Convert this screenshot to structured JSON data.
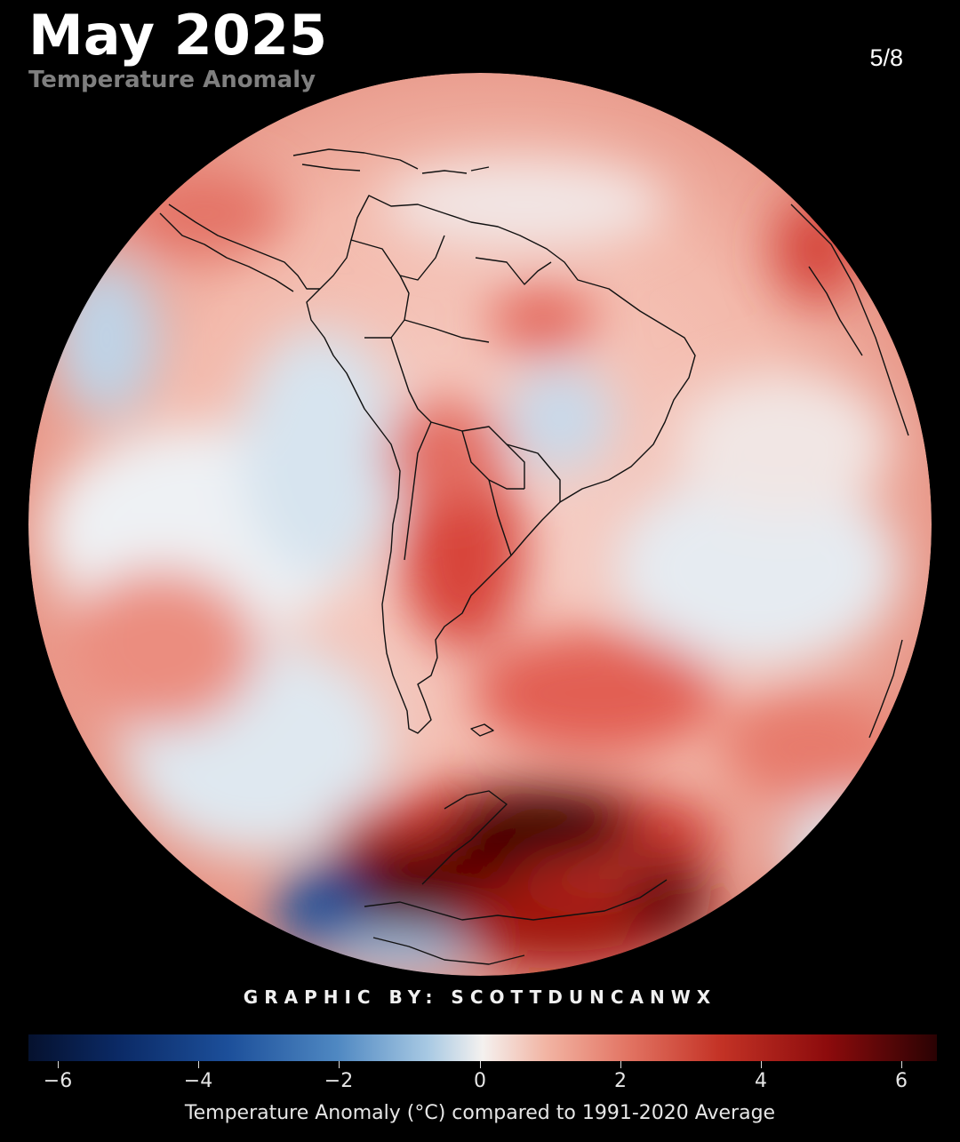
{
  "header": {
    "title": "May 2025",
    "subtitle": "Temperature Anomaly",
    "page_counter": "5/8"
  },
  "credit": "GRAPHIC BY: SCOTTDUNCANWX",
  "colorbar": {
    "ticks": [
      "−6",
      "−4",
      "−2",
      "0",
      "2",
      "4",
      "6"
    ],
    "label": "Temperature Anomaly (°C) compared to 1991-2020 Average",
    "colors": {
      "cold_extreme": "#05112e",
      "cold": "#1c4f9a",
      "neutral": "#f4f1ef",
      "warm": "#c43326",
      "warm_extreme": "#2a0203"
    }
  }
}
